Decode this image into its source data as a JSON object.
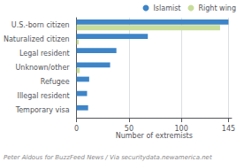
{
  "chart_data": {
    "type": "bar",
    "orientation": "horizontal",
    "categories": [
      "U.S.-born citizen",
      "Naturalized citizen",
      "Legal resident",
      "Unknown/other",
      "Refugee",
      "Illegal resident",
      "Temporary visa"
    ],
    "series": [
      {
        "name": "Islamist",
        "color": "#3d85c8",
        "values": [
          145,
          68,
          38,
          32,
          12,
          10,
          11
        ]
      },
      {
        "name": "Right wing",
        "color": "#c8dd9a",
        "values": [
          137,
          2,
          0,
          3,
          0,
          0,
          0
        ]
      }
    ],
    "xlabel": "Number of extremists",
    "xlim": [
      0,
      148
    ],
    "xticks": [
      0,
      50,
      100,
      145
    ],
    "grid": true,
    "legend": "upper right",
    "annotations": [
      {
        "text": "Peter Aldous for BuzzFeed News / Via securitydata.newamerica.net"
      }
    ]
  }
}
